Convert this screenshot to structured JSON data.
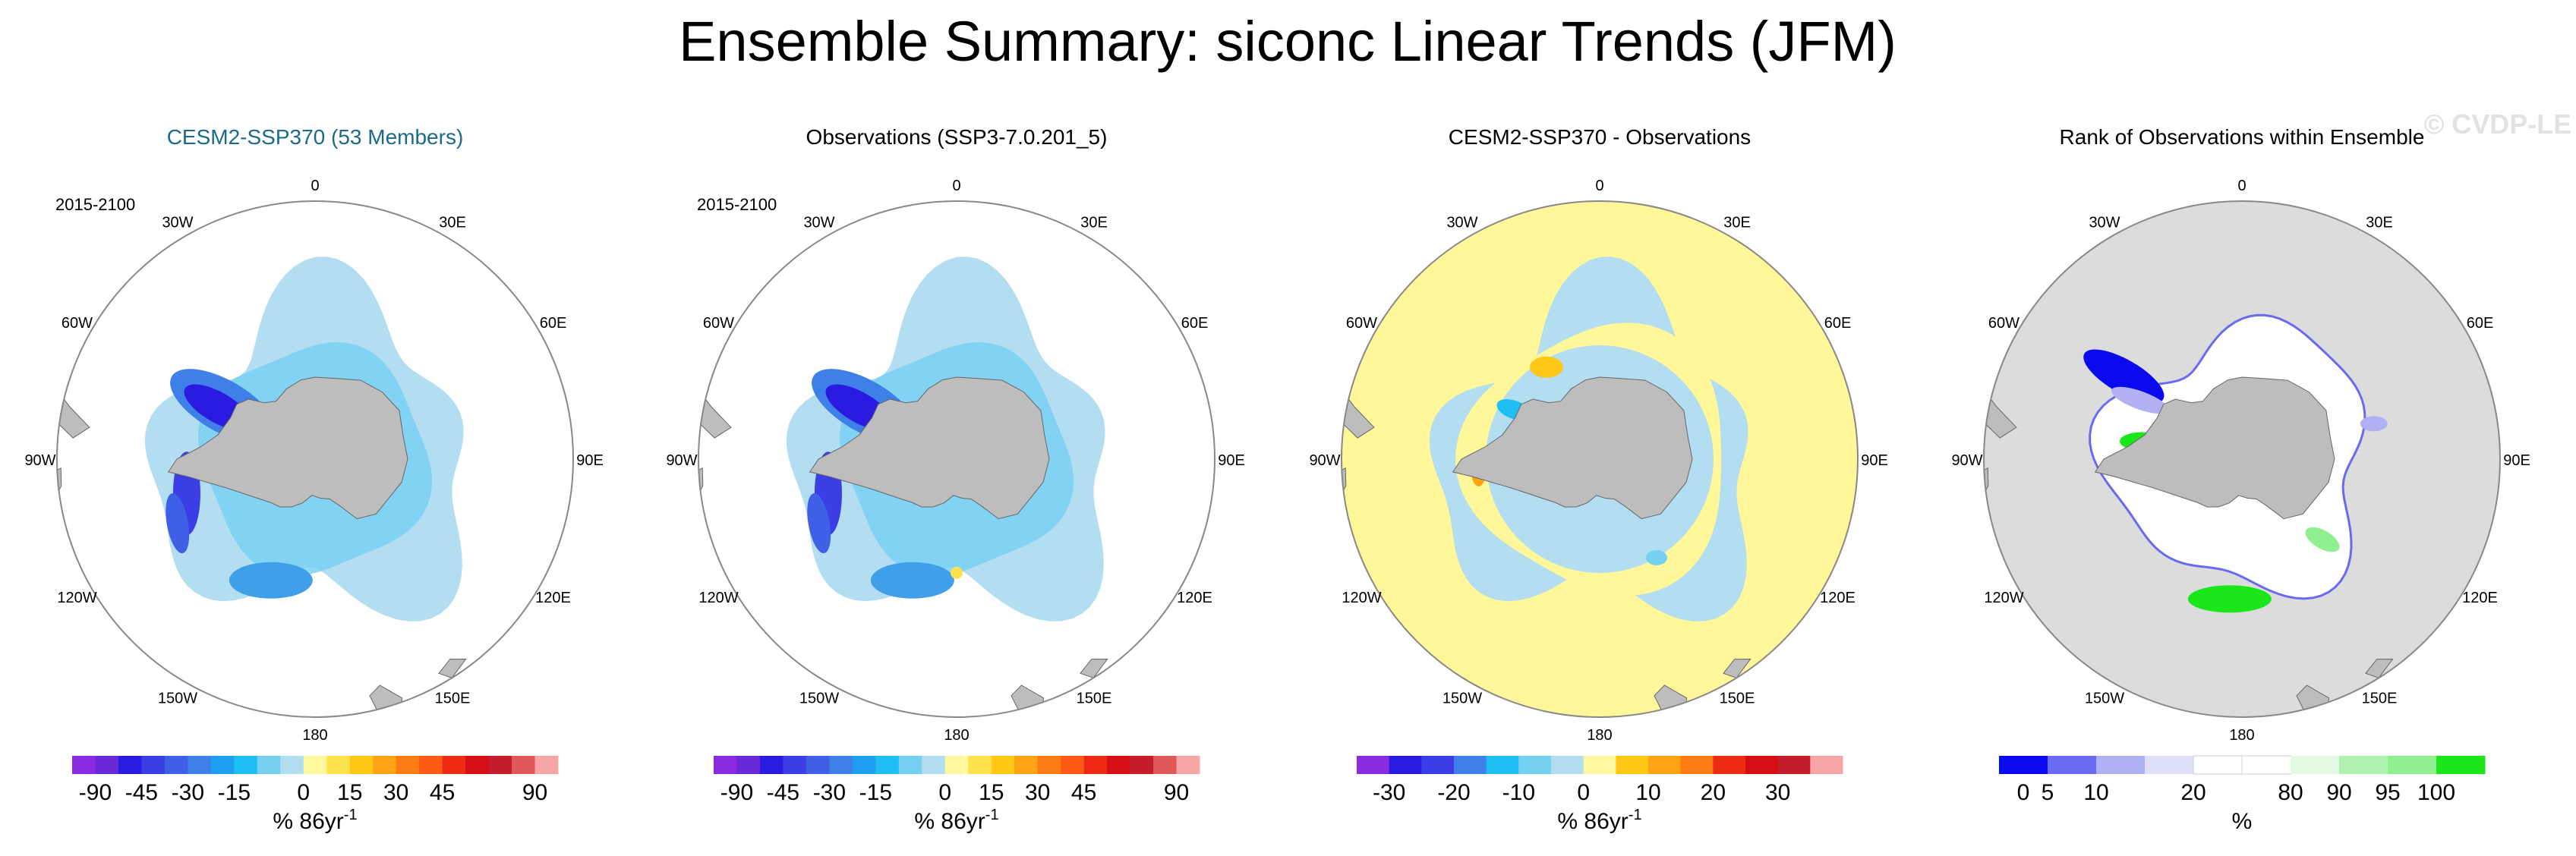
{
  "title": "Ensemble Summary: siconc Linear Trends (JFM)",
  "watermark": "© CVDP-LE",
  "longitude_labels": [
    "0",
    "30E",
    "60E",
    "90E",
    "120E",
    "150E",
    "180",
    "150W",
    "120W",
    "90W",
    "60W",
    "30W"
  ],
  "colors": {
    "title_blue": "#1b6a8a",
    "land": "#bdbdbd",
    "ocean_white": "#ffffff",
    "rim": "#888888",
    "diff_background": "#fff799",
    "rank_background": "#dcdcdc"
  },
  "chart_data": [
    {
      "type": "heatmap",
      "id": "model",
      "title": "CESM2-SSP370 (53 Members)",
      "title_colored": true,
      "period": "2015-2100",
      "background": "white",
      "units": "% 86yr",
      "units_exp": "-1",
      "ice_field": "model",
      "colorbar": {
        "colors": [
          "#8a2be2",
          "#6a28d8",
          "#2b1ae0",
          "#3a3ee4",
          "#3f5fe6",
          "#3f7fe8",
          "#1f9ff0",
          "#1fbff5",
          "#75d0f2",
          "#b3def2",
          "#fff8a0",
          "#ffe24d",
          "#ffc817",
          "#ffa214",
          "#ff7b14",
          "#ff5a14",
          "#ef2a14",
          "#d40e14",
          "#c51c2c",
          "#e05858",
          "#f6a6a6"
        ],
        "tick_labels": [
          "-90",
          "-45",
          "-30",
          "-15",
          "0",
          "15",
          "30",
          "45",
          "90"
        ],
        "tick_at": [
          1,
          3,
          5,
          7,
          10,
          12,
          14,
          16,
          20
        ]
      }
    },
    {
      "type": "heatmap",
      "id": "obs",
      "title": "Observations (SSP3-7.0.201_5)",
      "title_colored": false,
      "period": "2015-2100",
      "background": "white",
      "units": "% 86yr",
      "units_exp": "-1",
      "ice_field": "obs",
      "colorbar": {
        "colors": [
          "#8a2be2",
          "#6a28d8",
          "#2b1ae0",
          "#3a3ee4",
          "#3f5fe6",
          "#3f7fe8",
          "#1f9ff0",
          "#1fbff5",
          "#75d0f2",
          "#b3def2",
          "#fff8a0",
          "#ffe24d",
          "#ffc817",
          "#ffa214",
          "#ff7b14",
          "#ff5a14",
          "#ef2a14",
          "#d40e14",
          "#c51c2c",
          "#e05858",
          "#f6a6a6"
        ],
        "tick_labels": [
          "-90",
          "-45",
          "-30",
          "-15",
          "0",
          "15",
          "30",
          "45",
          "90"
        ],
        "tick_at": [
          1,
          3,
          5,
          7,
          10,
          12,
          14,
          16,
          20
        ]
      }
    },
    {
      "type": "heatmap",
      "id": "diff",
      "title": "CESM2-SSP370 - Observations",
      "title_colored": false,
      "period": "",
      "background": "yellow",
      "units": "% 86yr",
      "units_exp": "-1",
      "ice_field": "diff",
      "colorbar": {
        "colors": [
          "#8a2be2",
          "#2b1ae0",
          "#3a3ee4",
          "#3f7fe8",
          "#1fbff5",
          "#75d0f2",
          "#b3def2",
          "#fff8a0",
          "#ffc817",
          "#ffa214",
          "#ff7b14",
          "#ef2a14",
          "#d40e14",
          "#c51c2c",
          "#f6a6a6"
        ],
        "tick_labels": [
          "-30",
          "-20",
          "-10",
          "0",
          "10",
          "20",
          "30"
        ],
        "tick_at": [
          1,
          3,
          5,
          7,
          9,
          11,
          13
        ]
      }
    },
    {
      "type": "heatmap",
      "id": "rank",
      "title": "Rank of Observations within Ensemble",
      "title_colored": false,
      "period": "",
      "background": "gray",
      "units": "%",
      "units_exp": "",
      "ice_field": "rank",
      "colorbar": {
        "colors": [
          "#0a0aee",
          "#6a6af0",
          "#b0b0f2",
          "#dedef8",
          "#ffffff",
          "#ffffff",
          "#e2fbe2",
          "#b0f2b0",
          "#8ff08f",
          "#1ae61a"
        ],
        "tick_labels": [
          "0",
          "5",
          "10",
          "20",
          "80",
          "90",
          "95",
          "100"
        ],
        "tick_at": [
          0.5,
          1,
          2,
          4,
          6,
          7,
          8,
          9
        ]
      }
    }
  ]
}
